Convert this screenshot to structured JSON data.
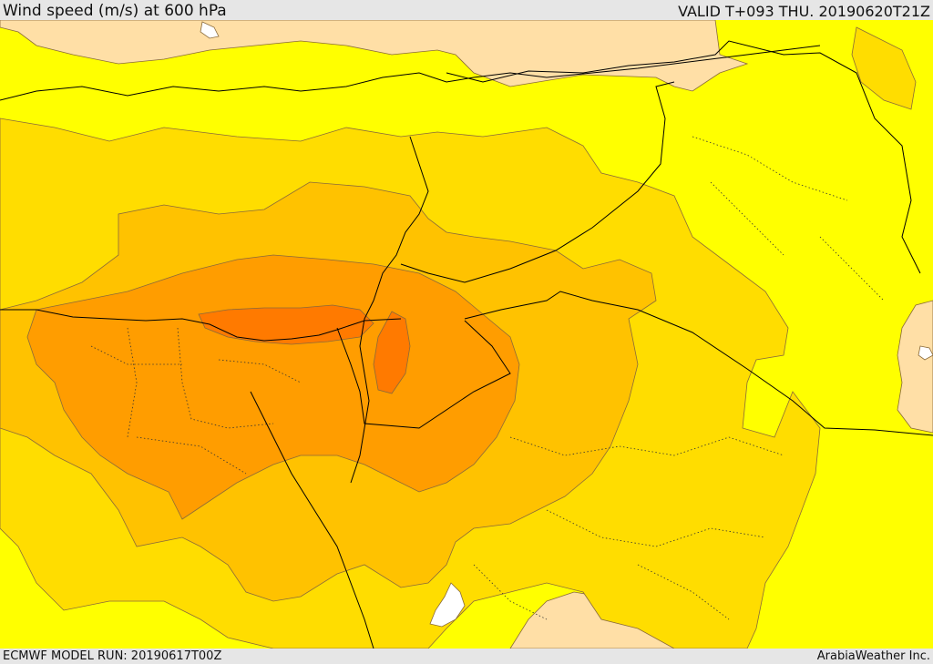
{
  "header": {
    "title": "Wind speed (m/s) at 600 hPa",
    "valid_time": "VALID T+093 THU. 20190620T21Z"
  },
  "footer": {
    "model_run": "ECMWF MODEL RUN: 20190617T00Z",
    "credit": "ArabiaWeather Inc."
  },
  "map": {
    "colors": {
      "level_lowest": "#ffdfa6",
      "level_low": "#ffff00",
      "level_mid": "#ffdd00",
      "level_mid_high": "#ffc200",
      "level_high": "#ff9d00",
      "level_highest": "#ff7a00",
      "water_white": "#ffffff"
    }
  }
}
